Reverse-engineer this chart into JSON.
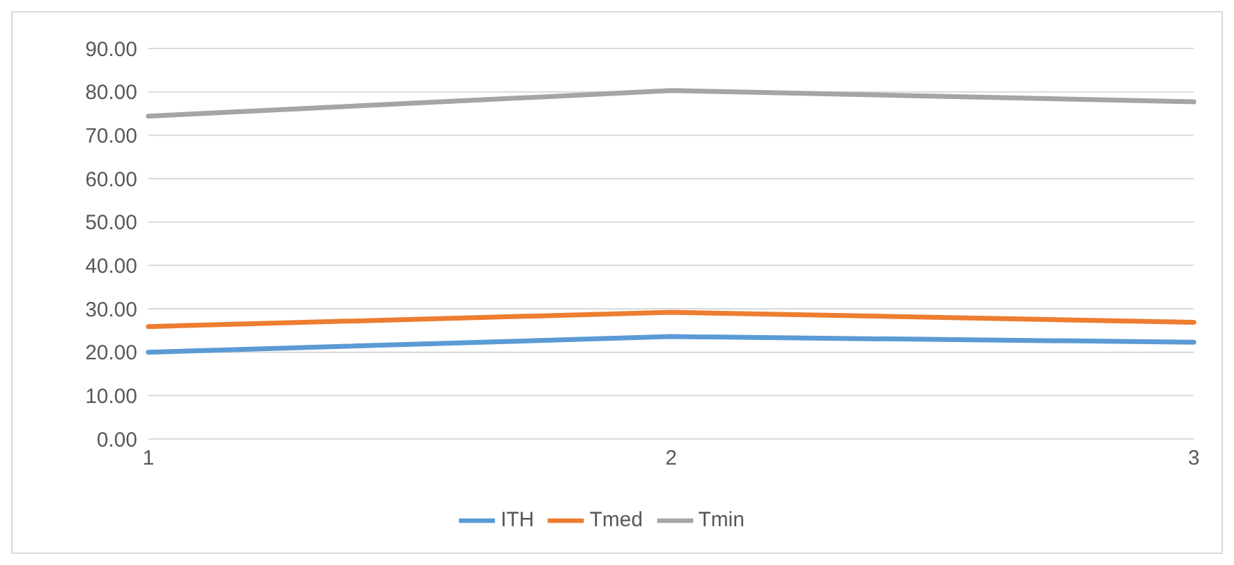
{
  "chart_data": {
    "type": "line",
    "categories": [
      "1",
      "2",
      "3"
    ],
    "series": [
      {
        "name": "ITH",
        "color": "#5b9bd5",
        "values": [
          20.0,
          23.6,
          22.3
        ]
      },
      {
        "name": "Tmed",
        "color": "#ed7d31",
        "values": [
          25.9,
          29.2,
          26.9
        ]
      },
      {
        "name": "Tmin",
        "color": "#a5a5a5",
        "values": [
          74.4,
          80.3,
          77.7
        ]
      }
    ],
    "ylim": [
      0,
      90
    ],
    "yticks": [
      {
        "value": 0,
        "label": "0.00"
      },
      {
        "value": 10,
        "label": "10.00"
      },
      {
        "value": 20,
        "label": "20.00"
      },
      {
        "value": 30,
        "label": "30.00"
      },
      {
        "value": 40,
        "label": "40.00"
      },
      {
        "value": 50,
        "label": "50.00"
      },
      {
        "value": 60,
        "label": "60.00"
      },
      {
        "value": 70,
        "label": "70.00"
      },
      {
        "value": 80,
        "label": "80.00"
      },
      {
        "value": 90,
        "label": "90.00"
      }
    ],
    "grid": "y",
    "legend": "bottom",
    "marker": "none",
    "line_style": "solid"
  }
}
